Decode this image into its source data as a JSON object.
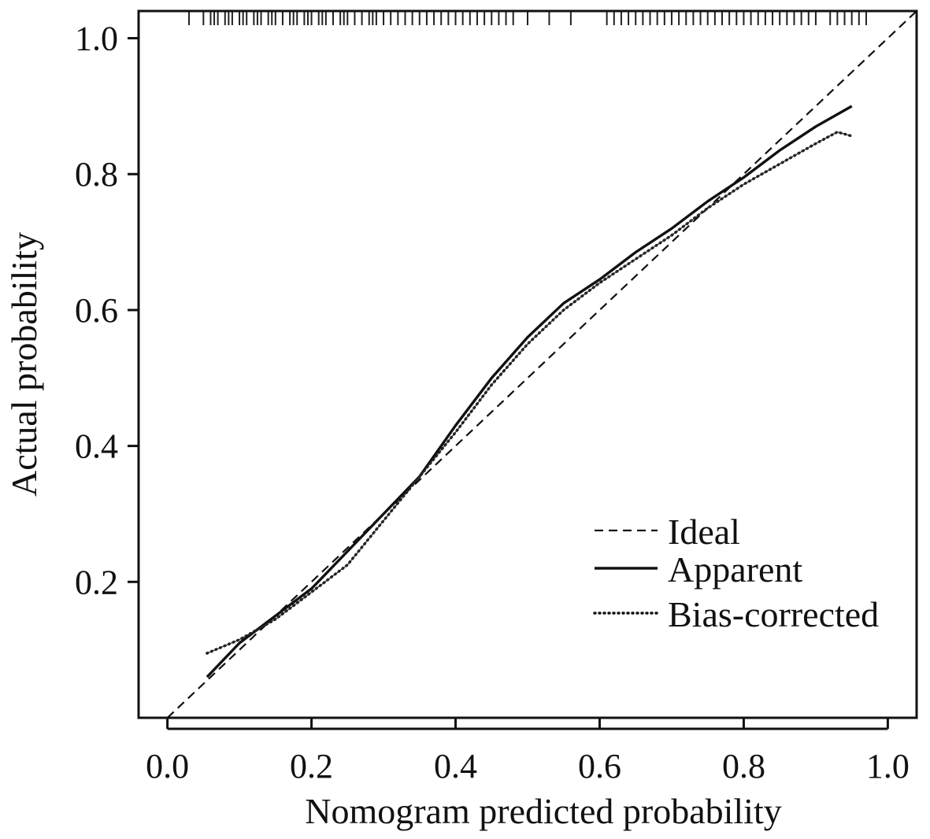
{
  "chart_data": {
    "type": "line",
    "title": "",
    "xlabel": "Nomogram predicted probability",
    "ylabel": "Actual probability",
    "xlim": [
      -0.04,
      1.04
    ],
    "ylim": [
      0.0,
      1.04
    ],
    "x_ticks": [
      0.0,
      0.2,
      0.4,
      0.6,
      0.8,
      1.0
    ],
    "x_tick_labels": [
      "0.0",
      "0.2",
      "0.4",
      "0.6",
      "0.8",
      "1.0"
    ],
    "y_ticks": [
      0.2,
      0.4,
      0.6,
      0.8,
      1.0
    ],
    "y_tick_labels": [
      "0.2",
      "0.4",
      "0.6",
      "0.8",
      "1.0"
    ],
    "grid": false,
    "legend_position": "bottom-right",
    "series": [
      {
        "name": "Ideal",
        "style": "dashed",
        "x": [
          0.0,
          1.04
        ],
        "y": [
          0.0,
          1.04
        ]
      },
      {
        "name": "Apparent",
        "style": "solid",
        "x": [
          0.055,
          0.1,
          0.15,
          0.2,
          0.25,
          0.3,
          0.35,
          0.4,
          0.45,
          0.5,
          0.55,
          0.6,
          0.65,
          0.7,
          0.75,
          0.8,
          0.85,
          0.9,
          0.95
        ],
        "y": [
          0.06,
          0.11,
          0.15,
          0.19,
          0.245,
          0.3,
          0.355,
          0.43,
          0.5,
          0.56,
          0.61,
          0.645,
          0.685,
          0.72,
          0.76,
          0.795,
          0.835,
          0.87,
          0.9
        ]
      },
      {
        "name": "Bias-corrected",
        "style": "dotted",
        "x": [
          0.055,
          0.1,
          0.15,
          0.2,
          0.25,
          0.3,
          0.35,
          0.4,
          0.45,
          0.5,
          0.55,
          0.6,
          0.65,
          0.7,
          0.75,
          0.8,
          0.85,
          0.9,
          0.93,
          0.95
        ],
        "y": [
          0.095,
          0.115,
          0.145,
          0.185,
          0.225,
          0.29,
          0.355,
          0.42,
          0.49,
          0.55,
          0.6,
          0.64,
          0.675,
          0.71,
          0.75,
          0.785,
          0.815,
          0.845,
          0.862,
          0.856
        ]
      }
    ],
    "rug_top": [
      0.03,
      0.05,
      0.06,
      0.065,
      0.07,
      0.08,
      0.085,
      0.09,
      0.1,
      0.105,
      0.11,
      0.12,
      0.125,
      0.13,
      0.14,
      0.145,
      0.15,
      0.16,
      0.17,
      0.175,
      0.18,
      0.19,
      0.195,
      0.2,
      0.21,
      0.215,
      0.22,
      0.23,
      0.24,
      0.245,
      0.25,
      0.26,
      0.27,
      0.28,
      0.285,
      0.29,
      0.3,
      0.31,
      0.32,
      0.33,
      0.34,
      0.35,
      0.36,
      0.37,
      0.38,
      0.39,
      0.4,
      0.41,
      0.42,
      0.43,
      0.44,
      0.45,
      0.46,
      0.47,
      0.48,
      0.5,
      0.53,
      0.56,
      0.61,
      0.62,
      0.63,
      0.64,
      0.65,
      0.66,
      0.67,
      0.68,
      0.69,
      0.7,
      0.71,
      0.72,
      0.73,
      0.74,
      0.75,
      0.76,
      0.77,
      0.78,
      0.79,
      0.8,
      0.81,
      0.82,
      0.83,
      0.84,
      0.85,
      0.86,
      0.87,
      0.88,
      0.89,
      0.9,
      0.92,
      0.93,
      0.94,
      0.95,
      0.96,
      0.97
    ]
  }
}
